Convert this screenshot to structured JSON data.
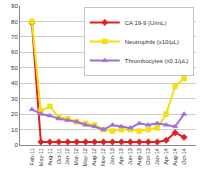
{
  "chart_data": {
    "type": "line",
    "categories": [
      "Feb-11",
      "May-11",
      "Aug-11",
      "Oct-11",
      "Jan-12",
      "Mar-12",
      "May-12",
      "Aug-12",
      "Nov-12",
      "Jan-13",
      "Apr-13",
      "Jun-13",
      "Aug-13",
      "Oct-13",
      "Jan-14",
      "Apr-14",
      "Aug-14",
      "Oct-14"
    ],
    "series": [
      {
        "name": "CA 19-9 (U/mL)",
        "color": "#e02020",
        "marker": "diamond",
        "line_style": "solid",
        "values": [
          79,
          2,
          2,
          2,
          2,
          2,
          2,
          2,
          2,
          2,
          2,
          2,
          2,
          2,
          2,
          3,
          8,
          5
        ]
      },
      {
        "name": "Neutrophils (x10/µL)",
        "color": "#f0e010",
        "marker": "square",
        "line_style": "solid",
        "values": [
          80,
          22,
          25,
          18,
          17,
          15,
          14,
          13,
          10,
          9,
          10,
          10,
          9,
          10,
          11,
          20,
          38,
          43
        ]
      },
      {
        "name": "Thrombocytes (x0.1/µL)",
        "color": "#a070d8",
        "marker": "triangle-up",
        "line_style": "solid",
        "values": [
          23,
          20,
          19,
          17,
          16,
          15,
          13,
          12,
          10,
          13,
          12,
          11,
          14,
          13,
          14,
          13,
          12,
          20
        ]
      }
    ],
    "ylim": [
      0,
      90
    ],
    "yticks": [
      0,
      10,
      20,
      30,
      40,
      50,
      60,
      70,
      80,
      90
    ],
    "grid": true,
    "legend": "top-right"
  }
}
